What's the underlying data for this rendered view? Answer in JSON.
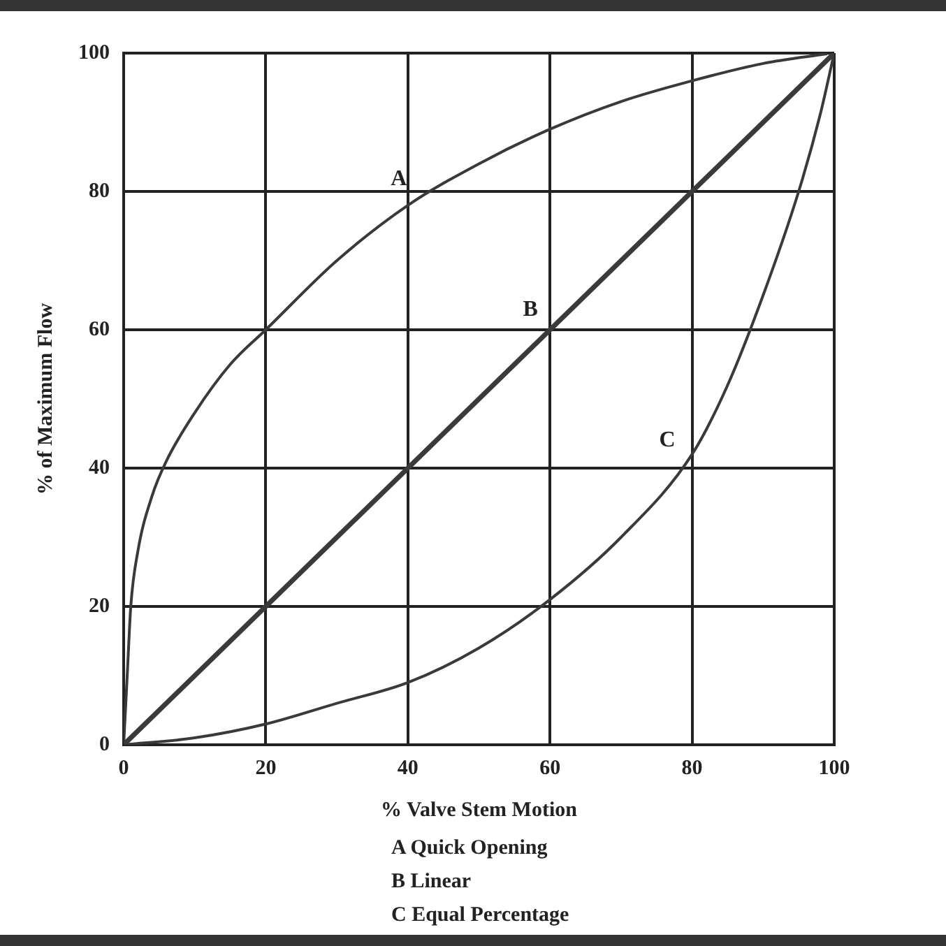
{
  "chart_data": {
    "type": "line",
    "xlabel": "% Valve Stem Motion",
    "ylabel": "% of Maximum Flow",
    "xlim": [
      0,
      100
    ],
    "xticks": [
      0,
      20,
      40,
      60,
      80,
      100
    ],
    "ylim": [
      0,
      100
    ],
    "yticks": [
      0,
      20,
      40,
      60,
      80,
      100
    ],
    "grid": true,
    "legend": false,
    "marker": "none",
    "line_style": "solid",
    "series": [
      {
        "name": "A",
        "color": "#3a3a3a",
        "x": [
          0,
          0.5,
          1,
          2,
          4,
          6,
          10,
          15,
          20,
          30,
          40,
          50,
          60,
          70,
          80,
          90,
          99
        ],
        "values": [
          0,
          10,
          20,
          28,
          36,
          41,
          48,
          55,
          60,
          70,
          78,
          84,
          89,
          93,
          96,
          98.5,
          99.9
        ]
      },
      {
        "name": "B",
        "color": "#3a3a3a",
        "x": [
          0,
          100
        ],
        "values": [
          0,
          100
        ]
      },
      {
        "name": "C",
        "color": "#3a3a3a",
        "x": [
          0,
          10,
          20,
          30,
          40,
          50,
          60,
          70,
          80,
          85,
          90,
          95,
          98,
          100
        ],
        "values": [
          0,
          1,
          3,
          6,
          9,
          14,
          21,
          30,
          42,
          52,
          65,
          80,
          91,
          100
        ]
      }
    ],
    "annotations": [
      "A Quick Opening",
      "B Linear",
      "C Equal Percentage"
    ]
  }
}
